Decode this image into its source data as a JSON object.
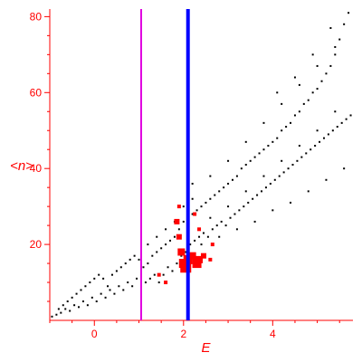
{
  "chart_data": {
    "type": "scatter",
    "title": "",
    "xlabel": "E",
    "ylabel": "<n>",
    "xlim": [
      -1.0,
      5.8
    ],
    "ylim": [
      0,
      82
    ],
    "x_ticks": [
      {
        "value": 0,
        "label": "0"
      },
      {
        "value": 2,
        "label": "2"
      },
      {
        "value": 4,
        "label": "4"
      }
    ],
    "y_ticks": [
      {
        "value": 20,
        "label": "20"
      },
      {
        "value": 40,
        "label": "40"
      },
      {
        "value": 60,
        "label": "60"
      },
      {
        "value": 80,
        "label": "80"
      }
    ],
    "grid": false,
    "legend": "none",
    "vertical_lines": [
      {
        "x": 1.05,
        "color": "#e000e0",
        "name": ""
      },
      {
        "x": 2.1,
        "color": "#0000ff",
        "name": ""
      }
    ],
    "series": [
      {
        "color": "#000000",
        "marker": "dot",
        "points": [
          [
            -0.95,
            1
          ],
          [
            -0.85,
            1.5
          ],
          [
            -0.8,
            3
          ],
          [
            -0.75,
            2
          ],
          [
            -0.7,
            4
          ],
          [
            -0.65,
            3
          ],
          [
            -0.6,
            5
          ],
          [
            -0.55,
            2.5
          ],
          [
            -0.5,
            6
          ],
          [
            -0.45,
            4
          ],
          [
            -0.4,
            7
          ],
          [
            -0.35,
            3.5
          ],
          [
            -0.3,
            8
          ],
          [
            -0.25,
            5
          ],
          [
            -0.2,
            9
          ],
          [
            -0.15,
            4
          ],
          [
            -0.1,
            10
          ],
          [
            -0.05,
            6
          ],
          [
            0.0,
            11
          ],
          [
            0.05,
            5
          ],
          [
            0.1,
            12
          ],
          [
            0.15,
            7
          ],
          [
            0.2,
            11
          ],
          [
            0.25,
            6
          ],
          [
            0.3,
            9
          ],
          [
            0.35,
            8
          ],
          [
            0.4,
            12
          ],
          [
            0.45,
            7
          ],
          [
            0.5,
            13
          ],
          [
            0.55,
            9
          ],
          [
            0.6,
            14
          ],
          [
            0.65,
            8
          ],
          [
            0.7,
            15
          ],
          [
            0.75,
            10
          ],
          [
            0.8,
            16
          ],
          [
            0.85,
            9
          ],
          [
            0.9,
            17
          ],
          [
            0.95,
            11
          ],
          [
            1.0,
            16
          ],
          [
            1.05,
            12
          ],
          [
            1.1,
            14
          ],
          [
            1.15,
            10
          ],
          [
            1.2,
            15
          ],
          [
            1.25,
            11
          ],
          [
            1.3,
            17
          ],
          [
            1.35,
            12
          ],
          [
            1.4,
            18
          ],
          [
            1.45,
            10
          ],
          [
            1.5,
            19
          ],
          [
            1.55,
            12
          ],
          [
            1.6,
            20
          ],
          [
            1.65,
            14
          ],
          [
            1.7,
            21
          ],
          [
            1.75,
            13
          ],
          [
            1.8,
            22
          ],
          [
            1.85,
            15
          ],
          [
            1.9,
            24
          ],
          [
            1.95,
            17
          ],
          [
            2.0,
            26
          ],
          [
            2.05,
            18
          ],
          [
            2.1,
            27
          ],
          [
            2.15,
            20
          ],
          [
            2.2,
            28
          ],
          [
            2.25,
            21
          ],
          [
            2.3,
            29
          ],
          [
            2.35,
            22
          ],
          [
            2.4,
            30
          ],
          [
            2.45,
            23
          ],
          [
            2.5,
            31
          ],
          [
            2.55,
            22
          ],
          [
            2.6,
            32
          ],
          [
            2.65,
            24
          ],
          [
            2.7,
            33
          ],
          [
            2.75,
            25
          ],
          [
            2.8,
            34
          ],
          [
            2.85,
            26
          ],
          [
            2.9,
            35
          ],
          [
            2.95,
            25
          ],
          [
            3.0,
            36
          ],
          [
            3.05,
            27
          ],
          [
            3.1,
            37
          ],
          [
            3.15,
            28
          ],
          [
            3.2,
            38
          ],
          [
            3.25,
            29
          ],
          [
            3.3,
            40
          ],
          [
            3.35,
            30
          ],
          [
            3.4,
            41
          ],
          [
            3.45,
            31
          ],
          [
            3.5,
            42
          ],
          [
            3.55,
            32
          ],
          [
            3.6,
            43
          ],
          [
            3.65,
            33
          ],
          [
            3.7,
            44
          ],
          [
            3.75,
            34
          ],
          [
            3.8,
            45
          ],
          [
            3.85,
            35
          ],
          [
            3.9,
            46
          ],
          [
            3.95,
            36
          ],
          [
            4.0,
            47
          ],
          [
            4.05,
            37
          ],
          [
            4.1,
            48
          ],
          [
            4.15,
            38
          ],
          [
            4.2,
            50
          ],
          [
            4.25,
            39
          ],
          [
            4.3,
            51
          ],
          [
            4.35,
            40
          ],
          [
            4.4,
            52
          ],
          [
            4.45,
            41
          ],
          [
            4.5,
            54
          ],
          [
            4.55,
            42
          ],
          [
            4.6,
            55
          ],
          [
            4.65,
            43
          ],
          [
            4.7,
            57
          ],
          [
            4.75,
            44
          ],
          [
            4.8,
            58
          ],
          [
            4.85,
            45
          ],
          [
            4.9,
            60
          ],
          [
            4.95,
            46
          ],
          [
            5.0,
            61
          ],
          [
            5.05,
            47
          ],
          [
            5.1,
            63
          ],
          [
            5.15,
            48
          ],
          [
            5.2,
            65
          ],
          [
            5.25,
            49
          ],
          [
            5.3,
            67
          ],
          [
            5.35,
            50
          ],
          [
            5.4,
            70
          ],
          [
            5.45,
            51
          ],
          [
            5.5,
            74
          ],
          [
            5.55,
            52
          ],
          [
            5.6,
            78
          ],
          [
            5.65,
            53
          ],
          [
            5.7,
            81
          ],
          [
            5.75,
            54
          ],
          [
            2.2,
            36
          ],
          [
            2.6,
            38
          ],
          [
            3.0,
            42
          ],
          [
            3.4,
            47
          ],
          [
            3.8,
            52
          ],
          [
            4.2,
            57
          ],
          [
            4.6,
            62
          ],
          [
            5.0,
            67
          ],
          [
            5.4,
            72
          ],
          [
            2.4,
            20
          ],
          [
            2.8,
            22
          ],
          [
            3.2,
            24
          ],
          [
            3.6,
            26
          ],
          [
            4.0,
            29
          ],
          [
            4.4,
            31
          ],
          [
            4.8,
            34
          ],
          [
            5.2,
            37
          ],
          [
            5.6,
            40
          ],
          [
            1.2,
            20
          ],
          [
            1.4,
            22
          ],
          [
            1.6,
            24
          ],
          [
            1.8,
            26
          ],
          [
            2.0,
            30
          ],
          [
            2.2,
            32
          ],
          [
            2.6,
            27
          ],
          [
            3.0,
            30
          ],
          [
            3.4,
            34
          ],
          [
            3.8,
            38
          ],
          [
            4.2,
            42
          ],
          [
            4.6,
            46
          ],
          [
            5.0,
            50
          ],
          [
            5.4,
            55
          ],
          [
            4.1,
            60
          ],
          [
            4.5,
            64
          ],
          [
            4.9,
            70
          ],
          [
            5.3,
            77
          ]
        ]
      },
      {
        "color": "#ff0000",
        "marker": "square",
        "points": [
          {
            "x": 1.85,
            "y": 26,
            "size": 3
          },
          {
            "x": 1.9,
            "y": 22,
            "size": 3
          },
          {
            "x": 1.95,
            "y": 18,
            "size": 4
          },
          {
            "x": 2.0,
            "y": 15,
            "size": 5
          },
          {
            "x": 2.05,
            "y": 14,
            "size": 6
          },
          {
            "x": 2.1,
            "y": 16,
            "size": 5
          },
          {
            "x": 2.2,
            "y": 17,
            "size": 4
          },
          {
            "x": 2.3,
            "y": 15,
            "size": 5
          },
          {
            "x": 2.35,
            "y": 16,
            "size": 4
          },
          {
            "x": 2.45,
            "y": 17,
            "size": 3
          },
          {
            "x": 2.6,
            "y": 16,
            "size": 2
          },
          {
            "x": 1.9,
            "y": 30,
            "size": 2
          },
          {
            "x": 2.25,
            "y": 28,
            "size": 2
          },
          {
            "x": 2.35,
            "y": 24,
            "size": 2
          },
          {
            "x": 1.45,
            "y": 12,
            "size": 2
          },
          {
            "x": 1.6,
            "y": 10,
            "size": 2
          },
          {
            "x": 2.65,
            "y": 20,
            "size": 2
          }
        ]
      }
    ]
  }
}
